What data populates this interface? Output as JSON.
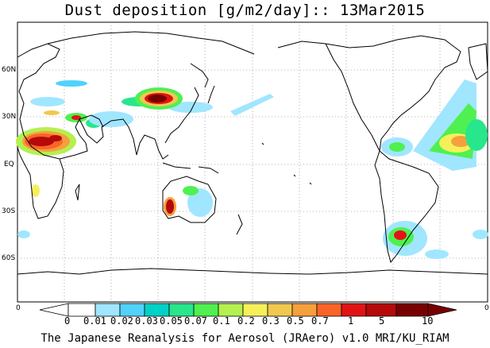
{
  "title": "Dust deposition [g/m2/day]:: 13Mar2015",
  "latitude_labels": [
    "60N",
    "30N",
    "EQ",
    "30S",
    "60S"
  ],
  "colorbar": {
    "edge_left": "0",
    "edge_right": "0",
    "labels": [
      "0",
      "0.01",
      "0.02",
      "0.03",
      "0.05",
      "0.07",
      "0.1",
      "0.2",
      "0.3",
      "0.5",
      "0.7",
      "1",
      "5",
      "10"
    ],
    "colors": [
      "#ffffff",
      "#ffffff",
      "#a0e6ff",
      "#50d2fa",
      "#00d2c8",
      "#28e68c",
      "#50f050",
      "#b4f050",
      "#f5f05a",
      "#f0c850",
      "#f5a03c",
      "#fa6428",
      "#e11414",
      "#b40a0a",
      "#780000"
    ]
  },
  "footer": "The Japanese Reanalysis for Aerosol (JRAero) v1.0 MRI/KU_RIAM"
}
